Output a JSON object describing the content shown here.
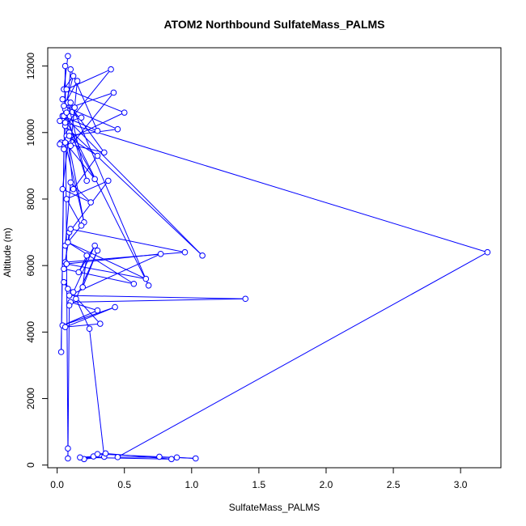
{
  "chart_data": {
    "type": "line",
    "title": "ATOM2 Northbound SulfateMass_PALMS",
    "xlabel": "SulfateMass_PALMS",
    "ylabel": "Altitude (m)",
    "xlim": [
      -0.07,
      3.3
    ],
    "ylim": [
      -80,
      12550
    ],
    "x_ticks": [
      "0.0",
      "0.5",
      "1.0",
      "1.5",
      "2.0",
      "2.5",
      "3.0"
    ],
    "x_tick_values": [
      0,
      0.5,
      1,
      1.5,
      2,
      2.5,
      3
    ],
    "y_ticks": [
      "0",
      "2000",
      "4000",
      "6000",
      "8000",
      "10000",
      "12000"
    ],
    "y_tick_values": [
      0,
      2000,
      4000,
      6000,
      8000,
      10000,
      12000
    ],
    "grid": false,
    "legend": "none",
    "series_color": "#0000ff",
    "series": [
      {
        "marker": "open-circle",
        "x": [
          0.08,
          0.05,
          0.12,
          0.04,
          0.3,
          0.1,
          0.06,
          0.4,
          0.07,
          0.5,
          0.03,
          0.35,
          0.08,
          0.22,
          0.06,
          0.42,
          0.1,
          0.15,
          0.05,
          0.45,
          0.07,
          0.3,
          0.12,
          0.08,
          0.2,
          0.06,
          0.28,
          0.09,
          0.04,
          0.25,
          0.1,
          0.06,
          0.18,
          0.07,
          0.38,
          0.09,
          0.06,
          0.95,
          0.1,
          0.05,
          0.57,
          0.08,
          0.66,
          0.07,
          0.77,
          0.09,
          1.4,
          0.1,
          0.3,
          0.04,
          0.43,
          0.06,
          0.32,
          0.08,
          0.05,
          0.12,
          0.28,
          0.16,
          0.22,
          0.19,
          0.3,
          0.14,
          0.24,
          0.35,
          0.2,
          0.27,
          0.17,
          0.85,
          0.36,
          0.3,
          0.76,
          1.03,
          0.89,
          0.45,
          3.2,
          0.02,
          1.08,
          0.05,
          0.68,
          0.1,
          0.04,
          0.13,
          0.07,
          0.18,
          0.06,
          0.09,
          0.02,
          0.05,
          0.03,
          0.06,
          0.08,
          0.08,
          0.09
        ],
        "y": [
          12300,
          11300,
          11700,
          10500,
          10050,
          11900,
          10200,
          11900,
          11300,
          10600,
          9700,
          9400,
          10900,
          8550,
          10700,
          11200,
          9600,
          11550,
          10800,
          10100,
          9900,
          9300,
          8300,
          9800,
          7300,
          9700,
          8600,
          10000,
          8300,
          7900,
          8500,
          6600,
          7200,
          8000,
          8550,
          7000,
          6100,
          6400,
          7100,
          5900,
          5450,
          6700,
          5600,
          6050,
          6350,
          5100,
          5000,
          4900,
          4650,
          4200,
          4750,
          4150,
          4250,
          5300,
          5500,
          5200,
          6600,
          5800,
          6300,
          5350,
          6450,
          5000,
          4100,
          250,
          180,
          260,
          230,
          180,
          350,
          330,
          250,
          200,
          230,
          240,
          6400,
          10350,
          6300,
          10500,
          5400,
          10900,
          11000,
          10750,
          10600,
          10450,
          10300,
          9900,
          9650,
          9500,
          3400,
          12000,
          500,
          200,
          4800
        ]
      }
    ]
  }
}
